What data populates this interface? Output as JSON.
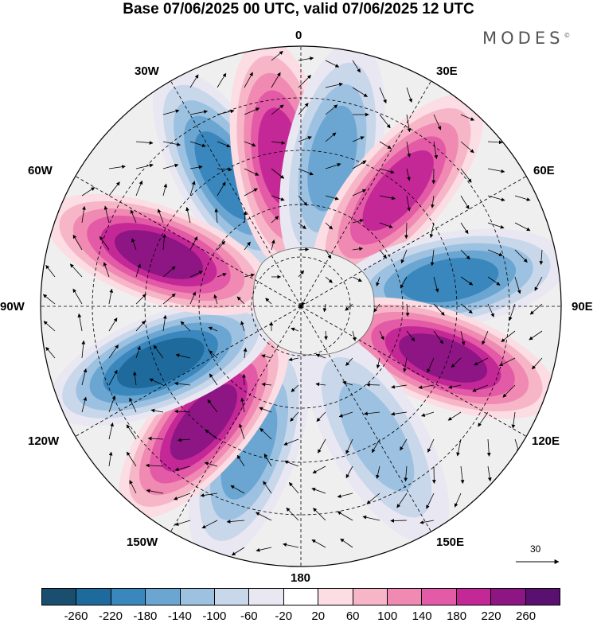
{
  "title": "Base 07/06/2025 00 UTC, valid 07/06/2025 12 UTC",
  "brand": "MODES",
  "brand_mark": "©",
  "longitude_labels": {
    "top": "0",
    "ne30": "30E",
    "ne60": "60E",
    "right": "90E",
    "se120": "120E",
    "se150": "150E",
    "bottom": "180",
    "sw150": "150W",
    "sw120": "120W",
    "left": "90W",
    "nw60": "60W",
    "nw30": "30W"
  },
  "reference_vector": "30",
  "colorbar": {
    "colors": [
      "#1a4e6e",
      "#1f6a9c",
      "#3a87bd",
      "#6aa6d1",
      "#9cc1e1",
      "#c9d7ea",
      "#e9e8f2",
      "#ffffff",
      "#fbdde3",
      "#f6b6c8",
      "#f08ab2",
      "#e35aa6",
      "#c42796",
      "#8e1584",
      "#5a1070"
    ],
    "ticks": [
      "-260",
      "-220",
      "-180",
      "-140",
      "-100",
      "-60",
      "-20",
      "20",
      "60",
      "100",
      "140",
      "180",
      "220",
      "260"
    ]
  },
  "anomaly_centers": [
    {
      "lon_deg": -30,
      "value": -180
    },
    {
      "lon_deg": -8,
      "value": 180
    },
    {
      "lon_deg": 12,
      "value": -140
    },
    {
      "lon_deg": 40,
      "value": 200
    },
    {
      "lon_deg": 80,
      "value": -200
    },
    {
      "lon_deg": 110,
      "value": 230
    },
    {
      "lon_deg": 150,
      "value": -120
    },
    {
      "lon_deg": -160,
      "value": -150
    },
    {
      "lon_deg": -140,
      "value": 230
    },
    {
      "lon_deg": -112,
      "value": -220
    },
    {
      "lon_deg": -70,
      "value": 240
    }
  ]
}
